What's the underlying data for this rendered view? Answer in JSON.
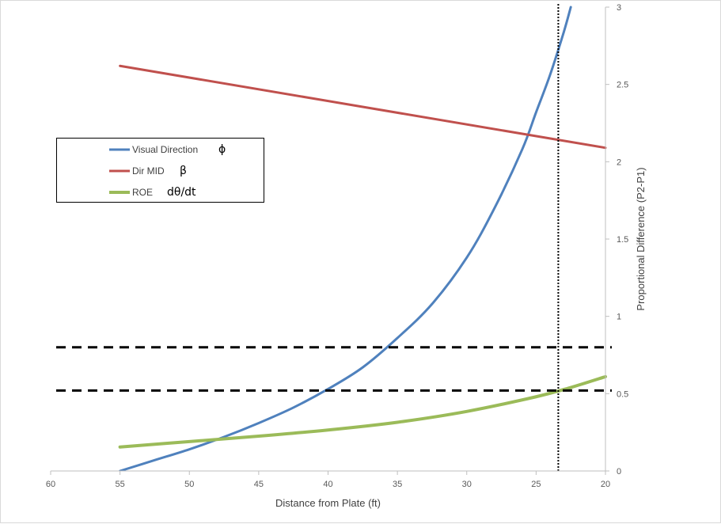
{
  "chart_data": {
    "type": "line",
    "xlabel": "Distance from Plate (ft)",
    "ylabel": "Proportional  Difference (P2-P1)",
    "xlim": [
      60,
      20
    ],
    "x_reversed": true,
    "ylim": [
      0,
      3
    ],
    "x_ticks": [
      "60",
      "55",
      "50",
      "45",
      "40",
      "35",
      "30",
      "25",
      "20"
    ],
    "y_ticks": [
      "0",
      "0.5",
      "1",
      "1.5",
      "2",
      "2.5",
      "3"
    ],
    "y_axis_position": "right",
    "grid": false,
    "legend_placement": "left",
    "series": [
      {
        "name": "Visual Direction",
        "symbol": "ϕ",
        "color": "#4f81bd",
        "x": [
          55,
          52.5,
          50,
          47.5,
          45,
          42.5,
          40,
          37.5,
          35,
          32.5,
          30,
          28,
          26,
          25,
          24,
          23,
          22.5
        ],
        "y": [
          0,
          0.07,
          0.14,
          0.22,
          0.31,
          0.41,
          0.53,
          0.67,
          0.86,
          1.08,
          1.38,
          1.7,
          2.08,
          2.32,
          2.56,
          2.84,
          3.0
        ]
      },
      {
        "name": "Dir MID",
        "symbol": "β",
        "color": "#c0504d",
        "x": [
          55,
          20
        ],
        "y": [
          2.62,
          2.09
        ]
      },
      {
        "name": "ROE",
        "symbol": "dθ/dt",
        "color": "#9bbb59",
        "x": [
          55,
          50,
          45,
          40,
          35,
          30,
          25,
          22.5,
          20
        ],
        "y": [
          0.155,
          0.19,
          0.225,
          0.265,
          0.315,
          0.385,
          0.48,
          0.54,
          0.61
        ]
      }
    ],
    "reference_lines": [
      {
        "orientation": "horizontal",
        "y": 0.8,
        "style": "dashed",
        "color": "#000000"
      },
      {
        "orientation": "horizontal",
        "y": 0.52,
        "style": "dashed",
        "color": "#000000"
      },
      {
        "orientation": "vertical",
        "x": 23.4,
        "style": "dotted",
        "color": "#000000"
      }
    ]
  }
}
